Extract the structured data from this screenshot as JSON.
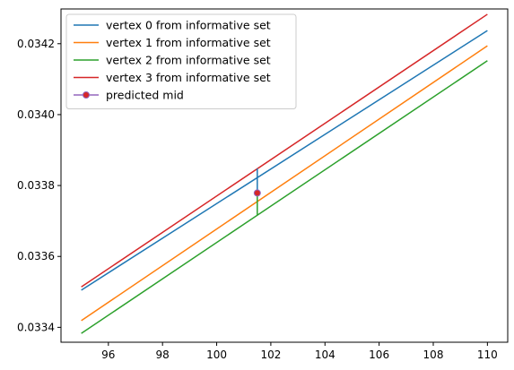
{
  "chart_data": {
    "type": "line",
    "title": "",
    "xlabel": "",
    "ylabel": "",
    "xlim": [
      94.25,
      110.75
    ],
    "ylim": [
      0.033358,
      0.034298
    ],
    "x_ticks": [
      96,
      98,
      100,
      102,
      104,
      106,
      108,
      110
    ],
    "x_tick_labels": [
      "96",
      "98",
      "100",
      "102",
      "104",
      "106",
      "108",
      "110"
    ],
    "y_ticks": [
      0.0334,
      0.0336,
      0.0338,
      0.034,
      0.0342
    ],
    "y_tick_labels": [
      "0.0334",
      "0.0336",
      "0.0338",
      "0.0340",
      "0.0342"
    ],
    "grid": false,
    "legend_position": "top-left",
    "series": [
      {
        "name": "vertex 0 from informative set",
        "color": "#1f77b4",
        "x": [
          95,
          110
        ],
        "y": [
          0.033505,
          0.034237
        ]
      },
      {
        "name": "vertex 1 from informative set",
        "color": "#ff7f0e",
        "x": [
          95,
          110
        ],
        "y": [
          0.033419,
          0.034194
        ]
      },
      {
        "name": "vertex 2 from informative set",
        "color": "#2ca02c",
        "x": [
          95,
          110
        ],
        "y": [
          0.033383,
          0.034152
        ]
      },
      {
        "name": "vertex 3 from informative set",
        "color": "#d62728",
        "x": [
          95,
          110
        ],
        "y": [
          0.033514,
          0.034283
        ]
      }
    ],
    "predicted": {
      "name": "predicted mid",
      "x": 101.5,
      "y": 0.033779,
      "marker_color": "#d62728",
      "marker_edge_color": "#9467bd",
      "errorbar": {
        "x": 101.5,
        "y_low": 0.033717,
        "y_high": 0.033848,
        "color_upper": "#1f77b4",
        "color_lower": "#2ca02c"
      }
    }
  }
}
